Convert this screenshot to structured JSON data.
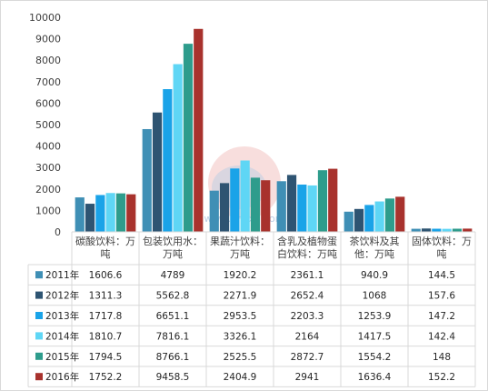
{
  "chart_data": {
    "type": "bar",
    "title": "",
    "xlabel": "",
    "ylabel": "",
    "ylim": [
      0,
      10000
    ],
    "yticks": [
      0,
      1000,
      2000,
      3000,
      4000,
      5000,
      6000,
      7000,
      8000,
      9000,
      10000
    ],
    "grid": false,
    "legend": "table-left",
    "categories": [
      [
        "碳酸饮料：万",
        "吨"
      ],
      [
        "包装饮用水：",
        "万吨"
      ],
      [
        "果蔬汁饮料：",
        "万吨"
      ],
      [
        "含乳及植物蛋",
        "白饮料：万吨"
      ],
      [
        "茶饮料及其",
        "他：万吨"
      ],
      [
        "固体饮料：万",
        "吨"
      ]
    ],
    "series": [
      {
        "name": "2011年",
        "color": "#3f8fb5",
        "values": [
          1606.6,
          4789,
          1920.2,
          2361.1,
          940.9,
          144.5
        ]
      },
      {
        "name": "2012年",
        "color": "#2e5472",
        "values": [
          1311.3,
          5562.8,
          2271.9,
          2652.4,
          1068,
          157.6
        ]
      },
      {
        "name": "2013年",
        "color": "#1aa3e8",
        "values": [
          1717.8,
          6651.1,
          2953.5,
          2203.3,
          1253.9,
          147.2
        ]
      },
      {
        "name": "2014年",
        "color": "#5fd6f5",
        "values": [
          1810.7,
          7816.1,
          3326.1,
          2164,
          1417.5,
          142.4
        ]
      },
      {
        "name": "2015年",
        "color": "#2e9c8c",
        "values": [
          1794.5,
          8766.1,
          2525.5,
          2872.7,
          1554.2,
          148
        ]
      },
      {
        "name": "2016年",
        "color": "#a8322d",
        "values": [
          1752.2,
          9458.5,
          2404.9,
          2941,
          1636.4,
          152.2
        ]
      }
    ],
    "table_values": [
      [
        "1606.6",
        "4789",
        "1920.2",
        "2361.1",
        "940.9",
        "144.5"
      ],
      [
        "1311.3",
        "5562.8",
        "2271.9",
        "2652.4",
        "1068",
        "157.6"
      ],
      [
        "1717.8",
        "6651.1",
        "2953.5",
        "2203.3",
        "1253.9",
        "147.2"
      ],
      [
        "1810.7",
        "7816.1",
        "3326.1",
        "2164",
        "1417.5",
        "142.4"
      ],
      [
        "1794.5",
        "8766.1",
        "2525.5",
        "2872.7",
        "1554.2",
        "148"
      ],
      [
        "1752.2",
        "9458.5",
        "2404.9",
        "2941",
        "1636.4",
        "152.2"
      ]
    ]
  },
  "watermark": {
    "text": "www.chyxx.com"
  }
}
